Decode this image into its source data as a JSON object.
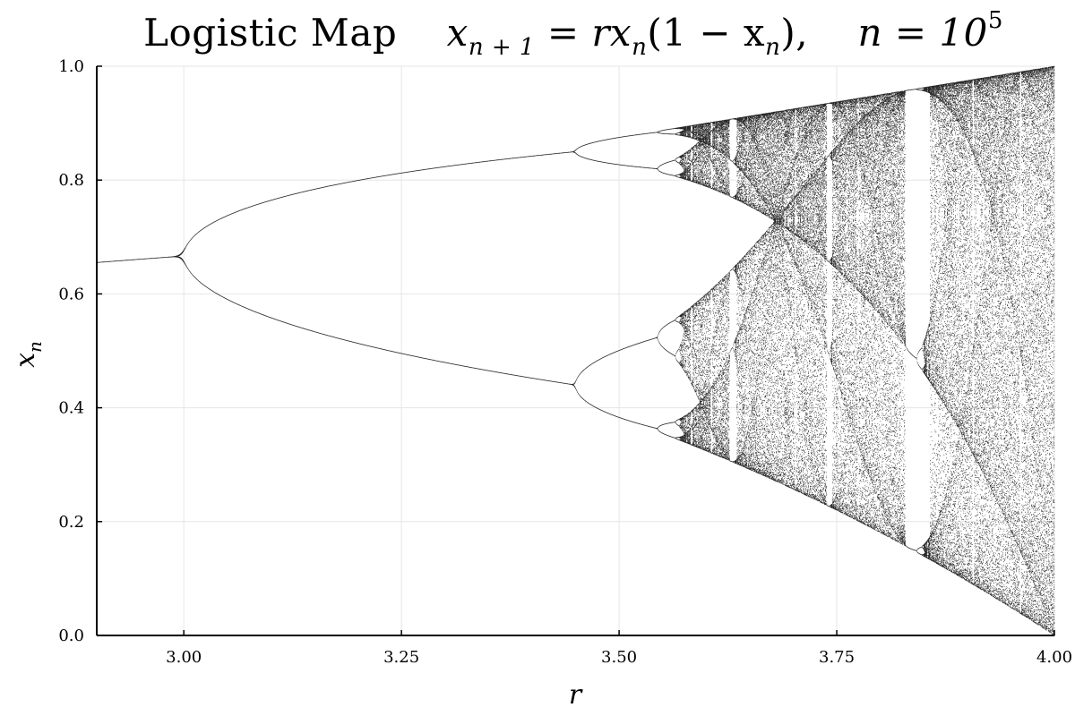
{
  "chart_data": {
    "type": "scatter",
    "title": "Logistic Map",
    "title_equation": {
      "lhs_var": "x",
      "lhs_sub": "n + 1",
      "rhs": "= rx",
      "rhs_sub": "n",
      "rhs_tail": "(1 − x",
      "rhs_tail_sub": "n",
      "rhs_close": "),",
      "n_label": "n = 10",
      "n_exp": "5"
    },
    "xlabel": "r",
    "ylabel": "x",
    "ylabel_sub": "n",
    "xlim": [
      2.9,
      4.0
    ],
    "ylim": [
      0.0,
      1.0
    ],
    "x_ticks": [
      "3.00",
      "3.25",
      "3.50",
      "3.75",
      "4.00"
    ],
    "x_tick_values": [
      3.0,
      3.25,
      3.5,
      3.75,
      4.0
    ],
    "y_ticks": [
      "0.0",
      "0.2",
      "0.4",
      "0.6",
      "0.8",
      "1.0"
    ],
    "y_tick_values": [
      0.0,
      0.2,
      0.4,
      0.6,
      0.8,
      1.0
    ],
    "grid": true,
    "marker_color": "#000000",
    "n_iterations": 100000,
    "map": "x_{n+1} = r x_n (1 - x_n)"
  }
}
